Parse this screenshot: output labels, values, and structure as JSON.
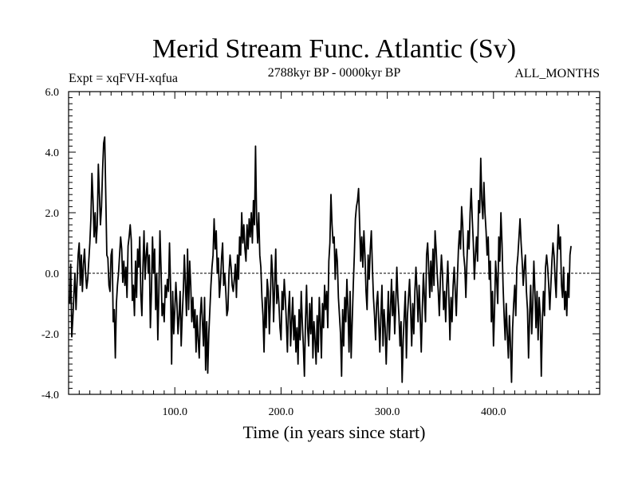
{
  "chart_data": {
    "type": "line",
    "title": "Merid Stream Func. Atlantic (Sv)",
    "subtitle_left": "Expt = xqFVH-xqfua",
    "subtitle_center": "2788kyr BP - 0000kyr BP",
    "subtitle_right": "ALL_MONTHS",
    "xlabel": "Time (in years since start)",
    "ylabel": "",
    "xlim": [
      0,
      500
    ],
    "ylim": [
      -4.0,
      6.0
    ],
    "x_ticks": [
      100,
      200,
      300,
      400
    ],
    "x_tick_labels": [
      "100.0",
      "200.0",
      "300.0",
      "400.0"
    ],
    "y_ticks": [
      -4,
      -2,
      0,
      2,
      4,
      6
    ],
    "y_tick_labels": [
      "-4.0",
      "-2.0",
      "0.0",
      "2.0",
      "4.0",
      "6.0"
    ],
    "reference_line": 0.0,
    "series": [
      {
        "name": "Merid Stream Func. Atlantic",
        "x_start": 1,
        "x_step": 1,
        "values": [
          -1.0,
          0.3,
          -2.1,
          -1.5,
          -0.7,
          0.0,
          -1.2,
          -0.3,
          0.6,
          1.0,
          -0.4,
          0.6,
          -0.6,
          0.3,
          0.8,
          0.0,
          -0.5,
          -0.2,
          0.4,
          1.0,
          1.8,
          3.3,
          2.4,
          1.2,
          2.0,
          1.0,
          1.6,
          3.6,
          2.6,
          1.6,
          2.2,
          3.4,
          4.3,
          4.5,
          2.6,
          0.6,
          0.5,
          -0.4,
          -0.6,
          0.6,
          0.8,
          -1.6,
          -1.2,
          -2.8,
          -1.0,
          -0.4,
          0.0,
          0.6,
          1.2,
          0.8,
          -0.3,
          0.4,
          -0.4,
          0.2,
          -0.8,
          0.9,
          1.2,
          1.6,
          1.1,
          -0.9,
          -0.4,
          -1.4,
          0.4,
          -0.8,
          0.8,
          0.2,
          1.2,
          -0.7,
          -1.4,
          0.2,
          1.4,
          -0.2,
          0.6,
          1.0,
          0.0,
          0.6,
          -1.8,
          -0.6,
          1.2,
          0.0,
          0.8,
          -1.2,
          0.0,
          -2.2,
          -0.6,
          1.4,
          0.2,
          -1.4,
          -1.0,
          -1.6,
          -0.4,
          -0.8,
          -0.2,
          -0.6,
          1.0,
          -0.4,
          -3.0,
          -0.6,
          -2.0,
          -1.2,
          -0.3,
          -1.0,
          -2.0,
          -1.4,
          -0.6,
          -2.4,
          -1.4,
          -0.6,
          0.6,
          -0.4,
          -1.4,
          0.8,
          -1.2,
          0.4,
          -0.4,
          -1.6,
          -0.8,
          -1.8,
          -1.2,
          -2.6,
          -1.4,
          -2.2,
          -2.8,
          -1.4,
          -0.8,
          -1.6,
          -2.4,
          -0.8,
          -3.2,
          -1.6,
          -3.3,
          -2.0,
          -1.2,
          -0.4,
          0.2,
          0.6,
          1.8,
          0.8,
          1.4,
          0.0,
          0.5,
          -0.8,
          -0.3,
          0.5,
          1.0,
          -0.4,
          0.0,
          -0.6,
          -1.4,
          -1.2,
          0.0,
          0.6,
          0.2,
          -0.4,
          -0.6,
          -0.2,
          0.3,
          -0.8,
          0.6,
          -0.2,
          1.2,
          0.6,
          2.0,
          1.0,
          1.6,
          0.8,
          0.4,
          1.6,
          0.8,
          1.8,
          1.2,
          2.0,
          1.0,
          2.4,
          1.6,
          4.2,
          1.8,
          1.0,
          2.0,
          0.6,
          0.2,
          -0.8,
          -1.4,
          -2.6,
          -0.8,
          -1.8,
          -0.2,
          -0.6,
          -2.0,
          -0.8,
          0.6,
          0.0,
          -1.6,
          -0.4,
          0.8,
          -1.0,
          -0.4,
          -1.0,
          -1.8,
          -2.2,
          -0.6,
          -1.2,
          -0.2,
          -0.8,
          -1.6,
          -2.6,
          -1.2,
          -0.6,
          -2.4,
          -1.6,
          -0.8,
          -2.2,
          -1.4,
          -2.6,
          -1.8,
          -3.0,
          -1.2,
          -2.2,
          -0.6,
          -1.6,
          -2.4,
          -3.4,
          -1.6,
          -0.4,
          -1.8,
          -2.4,
          -1.0,
          -2.0,
          -0.8,
          -2.8,
          -1.6,
          -2.2,
          -3.0,
          -1.4,
          -2.6,
          -0.8,
          -1.6,
          -2.8,
          -1.0,
          -1.8,
          -0.4,
          -1.2,
          -0.6,
          -1.8,
          0.4,
          1.0,
          2.6,
          1.6,
          1.0,
          1.2,
          -0.2,
          0.8,
          0.4,
          -0.8,
          -1.4,
          -2.0,
          -3.4,
          -1.2,
          -2.4,
          -0.8,
          -1.6,
          -0.2,
          -1.2,
          -2.6,
          -0.6,
          -2.8,
          -1.6,
          -0.4,
          0.6,
          1.8,
          2.2,
          2.4,
          2.8,
          1.6,
          0.4,
          1.2,
          0.2,
          1.4,
          0.6,
          -0.6,
          -1.2,
          0.6,
          -0.2,
          0.8,
          1.4,
          0.2,
          -0.8,
          -1.4,
          -2.2,
          -1.0,
          -0.6,
          -1.6,
          -2.6,
          -1.4,
          -0.4,
          -2.4,
          -1.2,
          -1.8,
          -3.0,
          -1.8,
          -0.6,
          -2.2,
          -1.2,
          -0.2,
          -1.4,
          -0.6,
          -2.0,
          -1.0,
          0.2,
          -0.8,
          -1.4,
          -2.4,
          -1.6,
          -3.6,
          -2.2,
          -1.4,
          -0.6,
          -2.8,
          -1.4,
          -0.8,
          -0.2,
          -1.2,
          -2.4,
          -1.0,
          -2.0,
          -0.6,
          0.2,
          -0.6,
          -1.6,
          -0.4,
          -1.4,
          -2.6,
          -1.2,
          0.0,
          -0.8,
          -1.6,
          0.6,
          1.0,
          0.2,
          -0.8,
          0.4,
          -0.6,
          0.8,
          -0.4,
          1.4,
          0.8,
          0.0,
          -0.6,
          -1.4,
          -0.2,
          0.6,
          0.0,
          -1.2,
          -0.6,
          -1.6,
          -0.4,
          0.4,
          -0.8,
          -2.2,
          -0.8,
          -1.6,
          -0.4,
          0.2,
          -0.6,
          -1.4,
          -0.2,
          0.8,
          1.4,
          0.8,
          2.2,
          1.6,
          0.6,
          0.2,
          -0.8,
          0.4,
          1.4,
          0.8,
          2.0,
          2.8,
          1.8,
          1.0,
          -0.2,
          0.6,
          1.2,
          0.4,
          2.4,
          2.0,
          3.8,
          2.4,
          1.8,
          3.0,
          2.0,
          1.4,
          0.6,
          1.2,
          -0.2,
          0.4,
          -1.6,
          -0.6,
          -2.4,
          -1.2,
          0.4,
          -0.2,
          -1.0,
          1.2,
          0.4,
          2.0,
          1.0,
          -0.4,
          -1.4,
          -2.2,
          -1.0,
          -2.0,
          -2.8,
          -1.4,
          -2.4,
          -3.6,
          -1.8,
          -1.0,
          -0.4,
          -1.4,
          0.2,
          0.6,
          1.2,
          1.8,
          1.0,
          0.4,
          -0.4,
          0.2,
          0.6,
          -0.6,
          -1.2,
          -2.8,
          -1.4,
          -0.4,
          -2.0,
          -1.0,
          0.4,
          -0.6,
          -1.8,
          -0.6,
          -2.2,
          -0.8,
          -1.4,
          -3.4,
          -1.6,
          -0.6,
          -1.4,
          0.2,
          0.6,
          0.2,
          -0.4,
          -1.2,
          -0.4,
          0.4,
          1.0,
          0.6,
          -0.2,
          -0.8,
          0.6,
          1.6,
          0.8,
          1.2,
          -0.4,
          -0.8,
          0.2,
          -1.2,
          -0.6,
          -1.4,
          0.0,
          -0.8,
          0.6,
          0.9
        ]
      }
    ]
  }
}
